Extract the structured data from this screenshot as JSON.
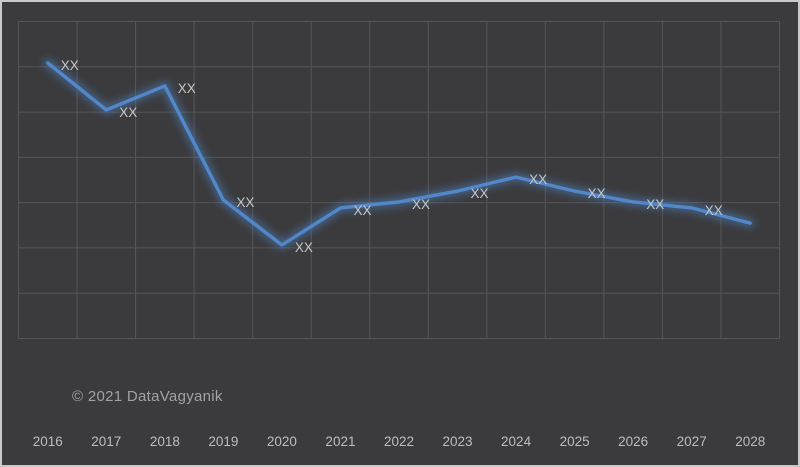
{
  "frame": {
    "copyright": "© 2021 DataVagyanik"
  },
  "colors": {
    "background": "#3b3b3d",
    "frame_border": "#c9c9c9",
    "grid": "#56565a",
    "line": "#5287c9",
    "line_glow": "#4a7fc0",
    "data_label": "#c6c6c6",
    "axis_label": "#bdbdbd",
    "copyright": "#a2a2a2"
  },
  "chart_data": {
    "type": "line",
    "title": "",
    "xlabel": "",
    "ylabel": "",
    "categories": [
      "2016",
      "2017",
      "2018",
      "2019",
      "2020",
      "2021",
      "2022",
      "2023",
      "2024",
      "2025",
      "2026",
      "2027",
      "2028"
    ],
    "series": [
      {
        "name": "",
        "values": [
          86.9,
          72.1,
          79.7,
          43.7,
          29.5,
          41.2,
          43.1,
          46.5,
          50.9,
          46.5,
          43.1,
          41.2,
          36.4
        ],
        "point_labels": [
          "XX",
          "XX",
          "XX",
          "XX",
          "XX",
          "XX",
          "XX",
          "XX",
          "XX",
          "XX",
          "XX",
          "XX",
          ""
        ]
      }
    ],
    "ylim": [
      0,
      100
    ],
    "grid": true,
    "legend": false,
    "y_axis_labels_visible": false,
    "note": "Data point values are masked as 'XX' in the source image; numeric values are estimated from pixel positions on a relative 0-100 scale (no y-axis scale shown)."
  }
}
